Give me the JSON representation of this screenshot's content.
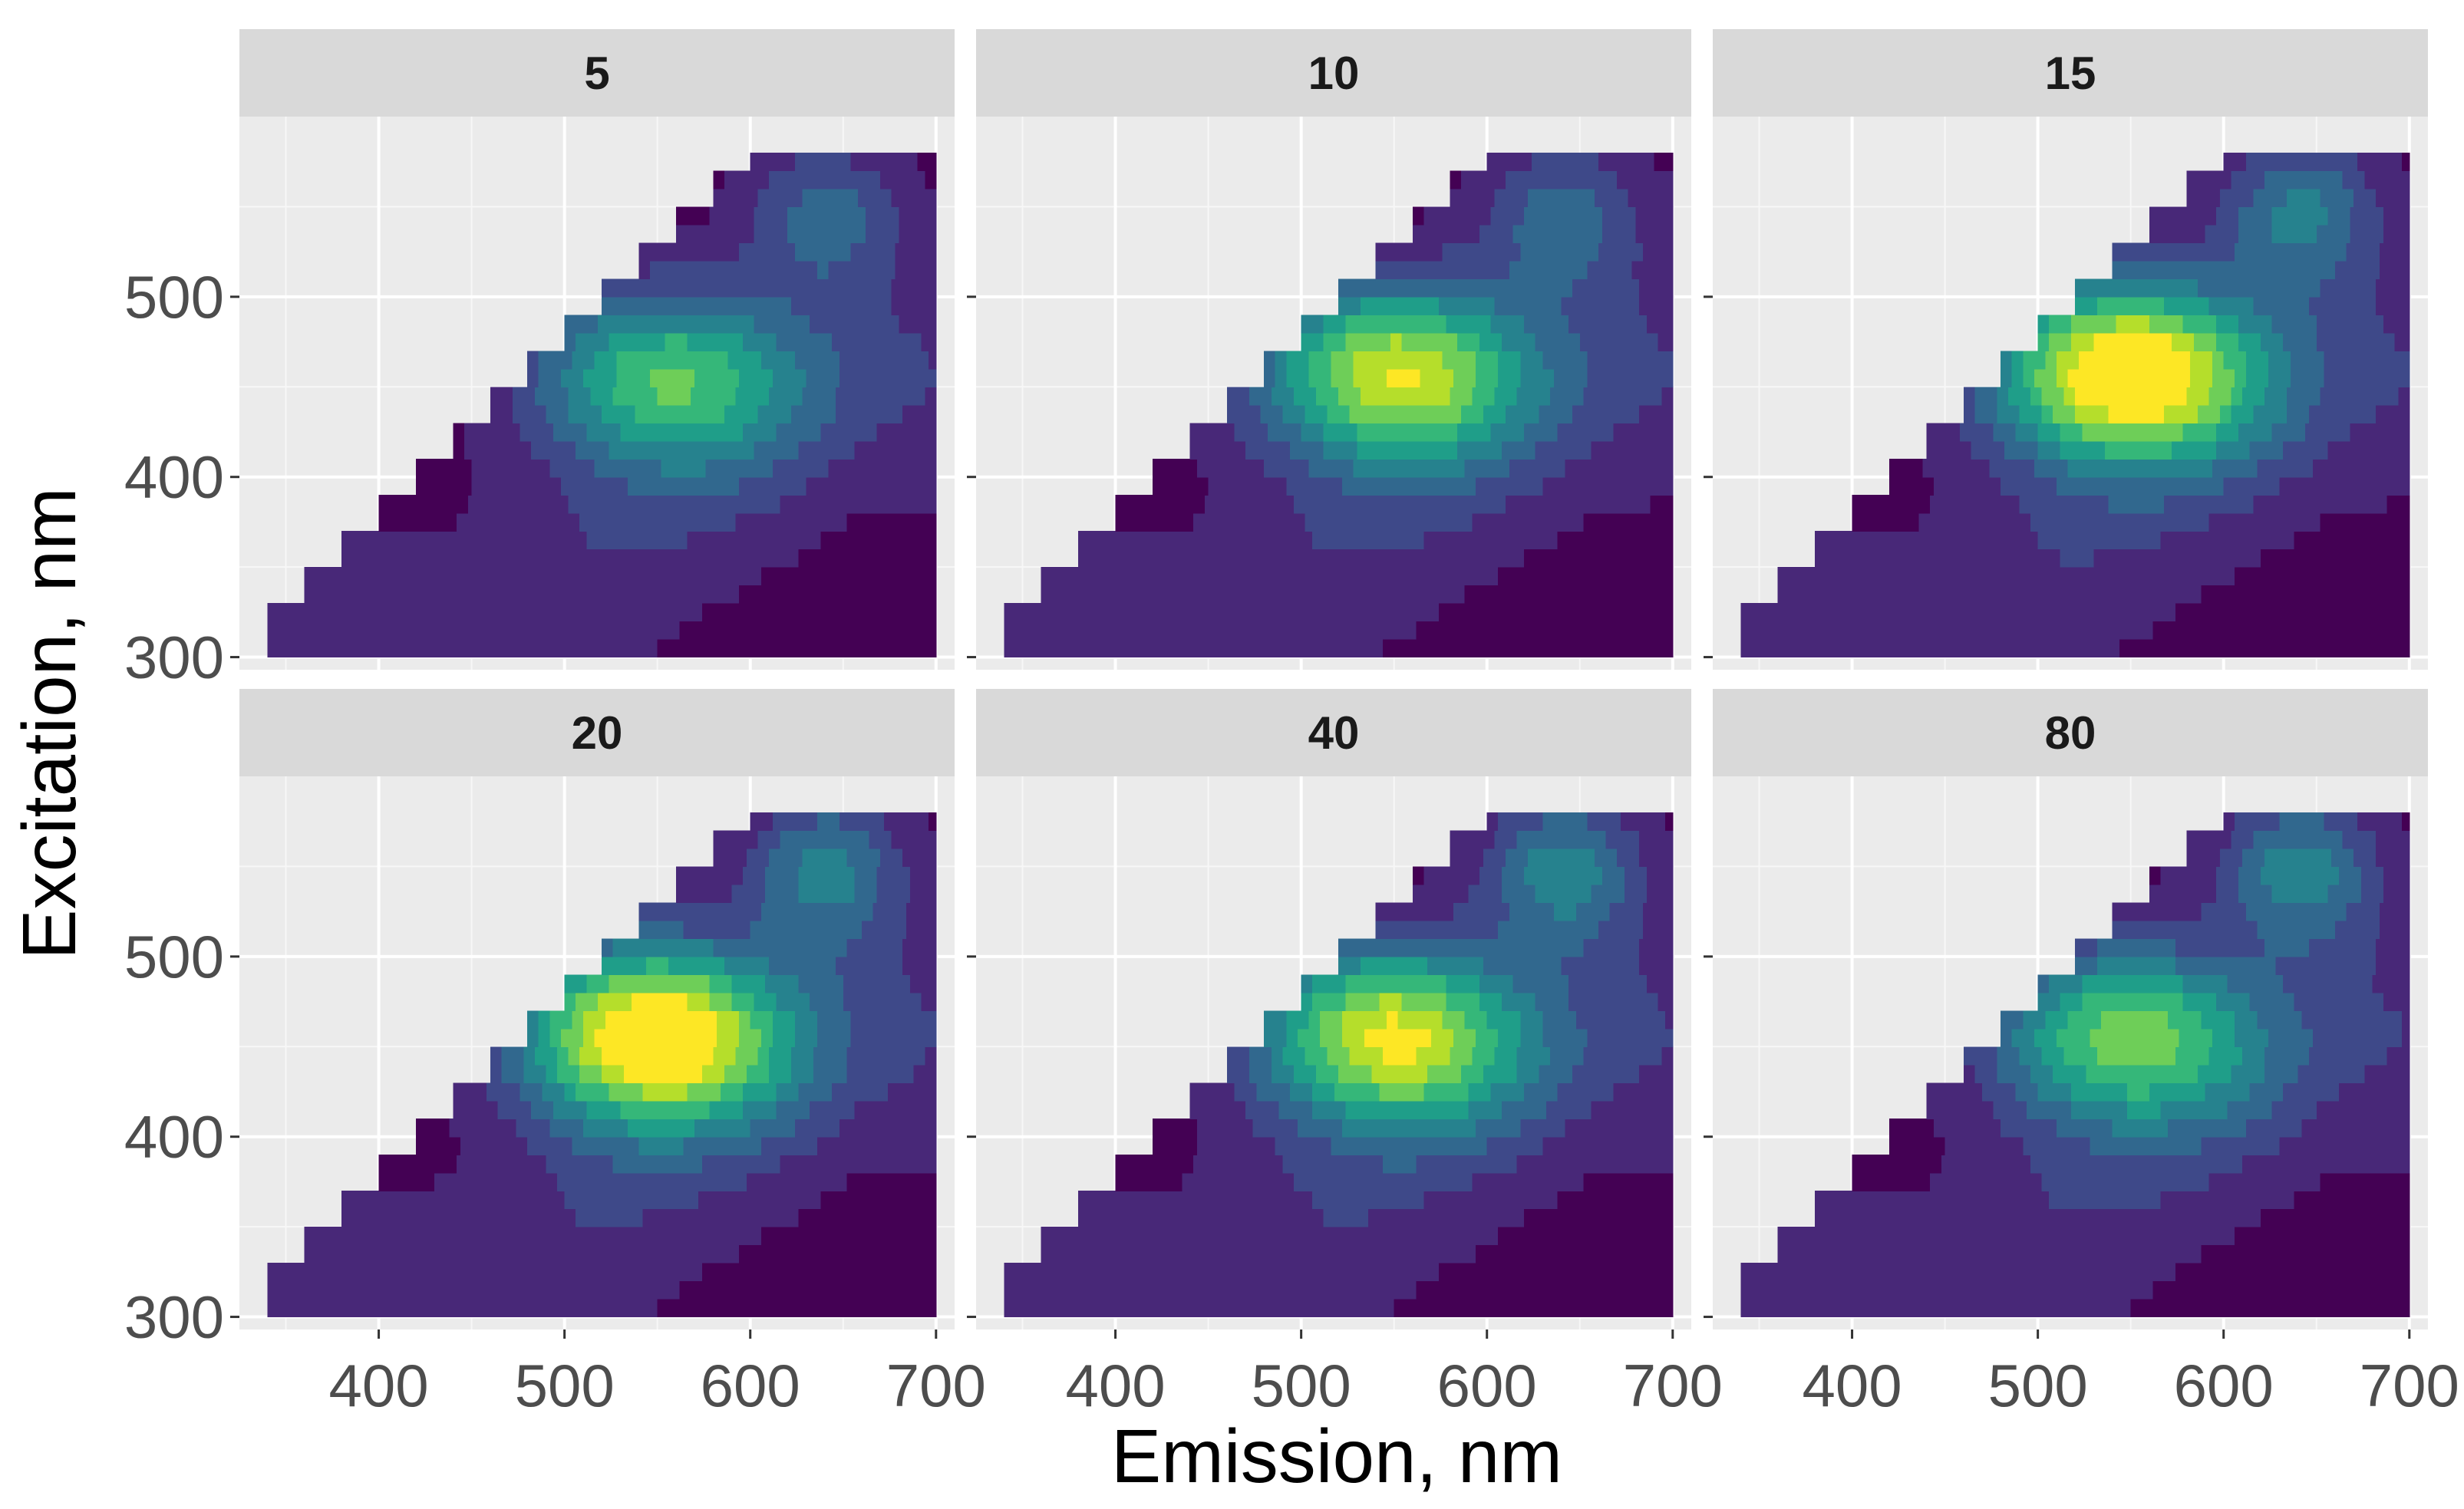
{
  "chart_data": {
    "type": "heatmap",
    "xlabel": "Emission, nm",
    "ylabel": "Excitation, nm",
    "xlim": [
      325,
      710
    ],
    "ylim": [
      293,
      600
    ],
    "x_ticks": [
      "400",
      "500",
      "600",
      "700"
    ],
    "y_ticks": [
      "300",
      "400",
      "500"
    ],
    "x_tick_values": [
      400,
      500,
      600,
      700
    ],
    "y_tick_values": [
      300,
      400,
      500
    ],
    "grid": true,
    "colormap": [
      "#440154",
      "#482878",
      "#3e4989",
      "#31688e",
      "#26828e",
      "#1f9e89",
      "#35b779",
      "#6ece58",
      "#b5de2b",
      "#fde725"
    ],
    "emission_range": [
      340,
      700
    ],
    "excitation_range": [
      300,
      580
    ],
    "panel_layout": "2 rows x 3 columns",
    "panels": [
      {
        "label": "5",
        "peak": {
          "emission": 555,
          "excitation": 455,
          "intensity": 0.62
        },
        "secondary": {
          "emission": 640,
          "excitation": 545,
          "intensity": 0.28
        }
      },
      {
        "label": "10",
        "peak": {
          "emission": 550,
          "excitation": 458,
          "intensity": 0.82
        },
        "secondary": {
          "emission": 640,
          "excitation": 545,
          "intensity": 0.3
        }
      },
      {
        "label": "15",
        "peak": {
          "emission": 548,
          "excitation": 458,
          "intensity": 1.0
        },
        "secondary": {
          "emission": 640,
          "excitation": 548,
          "intensity": 0.36
        }
      },
      {
        "label": "20",
        "peak": {
          "emission": 548,
          "excitation": 456,
          "intensity": 1.0
        },
        "secondary": {
          "emission": 640,
          "excitation": 548,
          "intensity": 0.38
        }
      },
      {
        "label": "40",
        "peak": {
          "emission": 548,
          "excitation": 456,
          "intensity": 0.85
        },
        "secondary": {
          "emission": 640,
          "excitation": 548,
          "intensity": 0.4
        }
      },
      {
        "label": "80",
        "peak": {
          "emission": 548,
          "excitation": 456,
          "intensity": 0.68
        },
        "secondary": {
          "emission": 640,
          "excitation": 548,
          "intensity": 0.4
        }
      }
    ]
  }
}
